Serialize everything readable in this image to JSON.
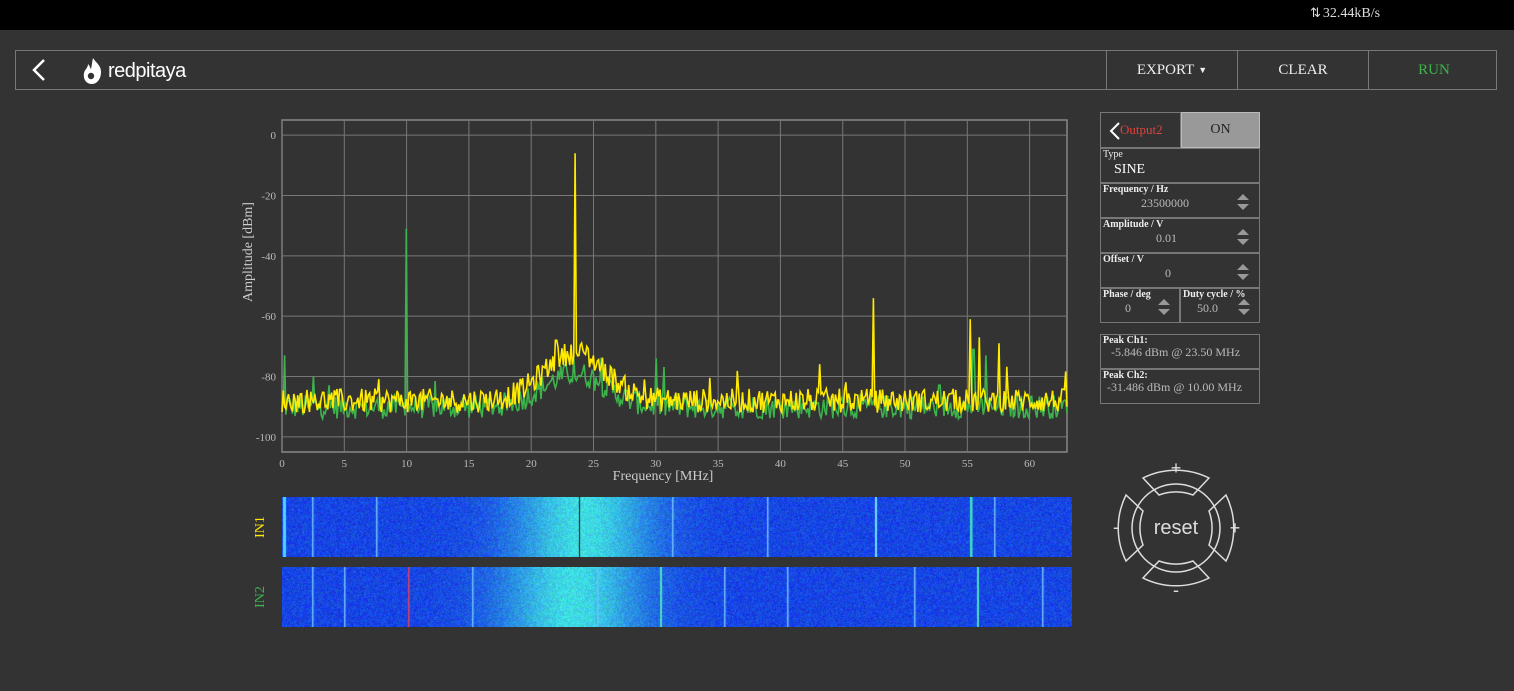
{
  "status_bar": {
    "data_rate": "32.44kB/s"
  },
  "header": {
    "logo_text": "redpitaya",
    "buttons": {
      "export": "EXPORT",
      "clear": "CLEAR",
      "run": "RUN"
    },
    "run_color": "#3cb44b"
  },
  "spectrum": {
    "chart_data": {
      "type": "line",
      "xlabel": "Frequency   [MHz]",
      "ylabel": "Amplitude  [dBm]",
      "xlim": [
        0,
        63
      ],
      "ylim": [
        -105,
        5
      ],
      "x_ticks": [
        "0",
        "5",
        "10",
        "15",
        "20",
        "25",
        "30",
        "35",
        "40",
        "45",
        "50",
        "55",
        "60"
      ],
      "y_ticks": [
        "0",
        "-20",
        "-40",
        "-60",
        "-80",
        "-100"
      ],
      "grid": true,
      "series": [
        {
          "name": "IN1",
          "color": "#ffea00",
          "noise_floor": -88,
          "peaks": [
            [
              23.5,
              -6
            ],
            [
              47.5,
              -54
            ],
            [
              55.2,
              -61
            ],
            [
              56,
              -67
            ],
            [
              57.5,
              -69
            ],
            [
              22.0,
              -68
            ],
            [
              24.5,
              -70
            ]
          ]
        },
        {
          "name": "IN2",
          "color": "#3cb44b",
          "noise_floor": -90,
          "peaks": [
            [
              10.0,
              -31
            ],
            [
              2.5,
              -80
            ],
            [
              30.0,
              -74
            ],
            [
              55.5,
              -71
            ],
            [
              56.5,
              -73
            ],
            [
              0.2,
              -73
            ]
          ]
        }
      ]
    }
  },
  "waterfall": {
    "in1_label": "IN1",
    "in2_label": "IN2",
    "in1_color": "#ffea00",
    "in2_color": "#3cb44b"
  },
  "generator": {
    "channel_label": "Output2",
    "channel_color": "#e0403a",
    "state_button": "ON",
    "type_label": "Type",
    "type_value": "SINE",
    "frequency_label": "Frequency   / Hz",
    "frequency_value": "23500000",
    "amplitude_label": "Amplitude / V",
    "amplitude_value": "0.01",
    "offset_label": "Offset  / V",
    "offset_value": "0",
    "phase_label": "Phase   / deg",
    "phase_value": "0",
    "duty_label": "Duty cycle / %",
    "duty_value": "50.0"
  },
  "peaks": {
    "ch1_label": "Peak  Ch1:",
    "ch1_value": "-5.846  dBm @ 23.50  MHz",
    "ch2_label": "Peak  Ch2:",
    "ch2_value": "-31.486  dBm @ 10.00  MHz"
  },
  "zoom_control": {
    "reset_label": "reset",
    "top": "+",
    "bottom": "-",
    "left": "-",
    "right": "+"
  }
}
